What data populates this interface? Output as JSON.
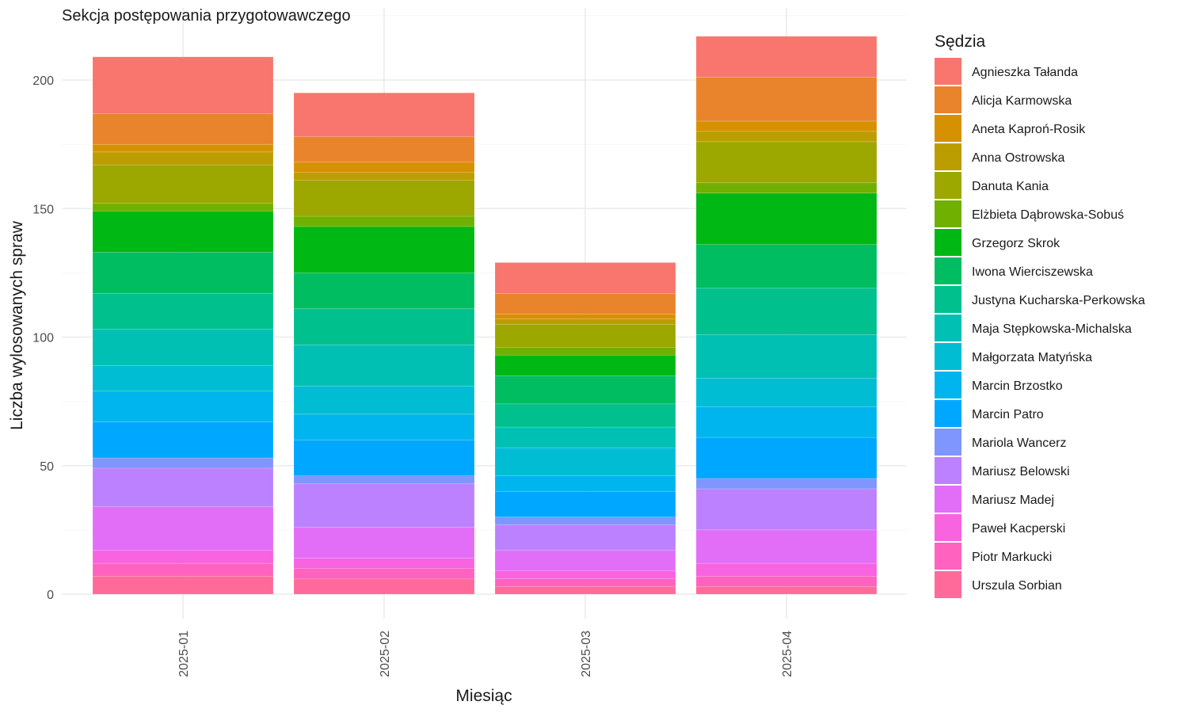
{
  "chart_data": {
    "type": "bar",
    "stacked": true,
    "title": "Sekcja postępowania przygotowawczego",
    "xlabel": "Miesiąc",
    "ylabel": "Liczba wylosowanych spraw",
    "categories": [
      "2025-01",
      "2025-02",
      "2025-03",
      "2025-04"
    ],
    "ylim": [
      0,
      220
    ],
    "yticks": [
      0,
      50,
      100,
      150,
      200
    ],
    "grid": true,
    "legend": {
      "title": "Sędzia",
      "position": "right"
    },
    "series": [
      {
        "name": "Agnieszka Tałanda",
        "color": "#F8766D",
        "values": [
          22,
          17,
          12,
          16
        ]
      },
      {
        "name": "Alicja Karmowska",
        "color": "#E9842C",
        "values": [
          12,
          10,
          8,
          17
        ]
      },
      {
        "name": "Aneta Kaproń-Rosik",
        "color": "#D69100",
        "values": [
          3,
          4,
          2,
          4
        ]
      },
      {
        "name": "Anna Ostrowska",
        "color": "#BC9D00",
        "values": [
          5,
          3,
          2,
          4
        ]
      },
      {
        "name": "Danuta Kania",
        "color": "#9CA700",
        "values": [
          15,
          14,
          9,
          16
        ]
      },
      {
        "name": "Elżbieta Dąbrowska-Sobuś",
        "color": "#6FB000",
        "values": [
          3,
          4,
          3,
          4
        ]
      },
      {
        "name": "Grzegorz Skrok",
        "color": "#00B813",
        "values": [
          16,
          18,
          8,
          20
        ]
      },
      {
        "name": "Iwona Wierciszewska",
        "color": "#00BD61",
        "values": [
          16,
          14,
          11,
          17
        ]
      },
      {
        "name": "Justyna Kucharska-Perkowska",
        "color": "#00C08E",
        "values": [
          14,
          14,
          9,
          18
        ]
      },
      {
        "name": "Maja Stępkowska-Michalska",
        "color": "#00C0B4",
        "values": [
          14,
          16,
          8,
          17
        ]
      },
      {
        "name": "Małgorzata Matyńska",
        "color": "#00BDD4",
        "values": [
          10,
          11,
          11,
          11
        ]
      },
      {
        "name": "Marcin Brzostko",
        "color": "#00B5EE",
        "values": [
          12,
          10,
          6,
          12
        ]
      },
      {
        "name": "Marcin Patro",
        "color": "#00A7FF",
        "values": [
          14,
          14,
          10,
          16
        ]
      },
      {
        "name": "Mariola Wancerz",
        "color": "#7F96FF",
        "values": [
          4,
          3,
          3,
          4
        ]
      },
      {
        "name": "Mariusz Belowski",
        "color": "#BC81FF",
        "values": [
          15,
          17,
          10,
          16
        ]
      },
      {
        "name": "Mariusz Madej",
        "color": "#E26EF7",
        "values": [
          17,
          12,
          8,
          13
        ]
      },
      {
        "name": "Paweł Kacperski",
        "color": "#F863DF",
        "values": [
          5,
          4,
          3,
          5
        ]
      },
      {
        "name": "Piotr Markucki",
        "color": "#FF62BF",
        "values": [
          5,
          4,
          3,
          4
        ]
      },
      {
        "name": "Urszula Sorbian",
        "color": "#FF6A9A",
        "values": [
          7,
          6,
          3,
          3
        ]
      }
    ]
  }
}
